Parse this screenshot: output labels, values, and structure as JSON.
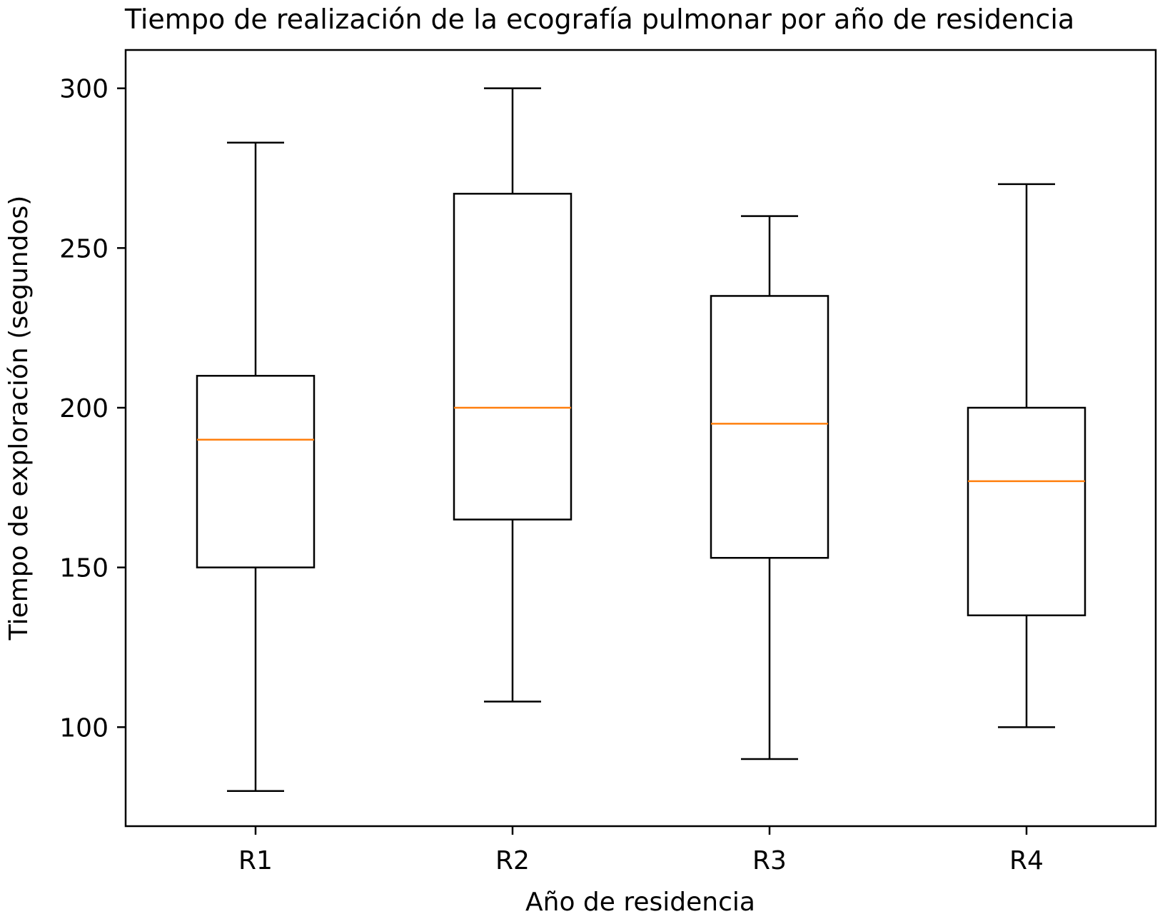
{
  "chart_data": {
    "type": "box",
    "title": "Tiempo de realización de la ecografía pulmonar por año de residencia",
    "xlabel": "Año de residencia",
    "ylabel": "Tiempo de exploración (segundos)",
    "categories": [
      "R1",
      "R2",
      "R3",
      "R4"
    ],
    "boxes": [
      {
        "whisker_low": 80,
        "q1": 150,
        "median": 190,
        "q3": 210,
        "whisker_high": 283
      },
      {
        "whisker_low": 108,
        "q1": 165,
        "median": 200,
        "q3": 267,
        "whisker_high": 300
      },
      {
        "whisker_low": 90,
        "q1": 153,
        "median": 195,
        "q3": 235,
        "whisker_high": 260
      },
      {
        "whisker_low": 100,
        "q1": 135,
        "median": 177,
        "q3": 200,
        "whisker_high": 270
      }
    ],
    "yticks": [
      100,
      150,
      200,
      250,
      300
    ],
    "ylim": [
      69,
      312
    ],
    "grid": false,
    "colors": {
      "box": "#000000",
      "median": "#ff7f0e"
    }
  }
}
